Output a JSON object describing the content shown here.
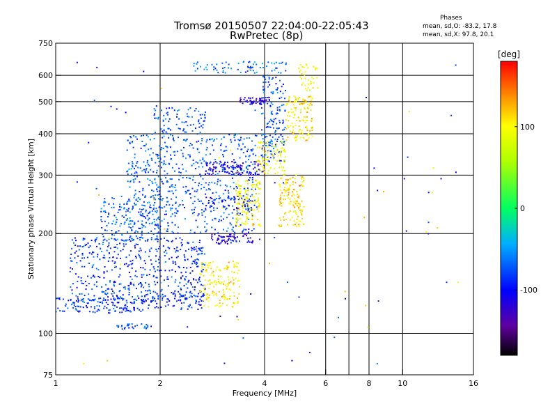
{
  "chart_data": {
    "type": "scatter",
    "title": "Tromsø 20150507 22:04:00-22:05:43",
    "subtitle": "RwPretec (8p)",
    "xlabel": "Frequency [MHz]",
    "ylabel": "Stationary phase Virtual Height [km]",
    "x_scale": "log",
    "y_scale": "log",
    "xlim": [
      1,
      16
    ],
    "ylim": [
      75,
      750
    ],
    "x_ticks": [
      1,
      2,
      4,
      6,
      8,
      10,
      16
    ],
    "y_ticks": [
      75,
      100,
      200,
      300,
      400,
      500,
      600,
      750
    ],
    "x_gridlines": [
      2,
      4,
      6,
      7,
      8,
      10
    ],
    "y_gridlines": [
      100,
      200,
      300,
      400,
      500,
      600
    ],
    "grid": true,
    "legend": {
      "title": "Phases",
      "o_stats": "mean, sd,O: -83.2, 17.8",
      "x_stats": "mean, sd,X:  97.8, 20.1",
      "placement": "top-right"
    },
    "colorbar": {
      "label": "[deg]",
      "range": [
        -180,
        180
      ],
      "ticks": [
        100,
        0,
        -100
      ],
      "tick_labels": [
        "100",
        "0",
        "-100"
      ]
    },
    "clusters": [
      {
        "trace": "o",
        "f": [
          1.0,
          1.8
        ],
        "h": [
          115,
          128
        ],
        "phase": -85,
        "n": 140
      },
      {
        "trace": "o",
        "f": [
          1.8,
          2.7
        ],
        "h": [
          118,
          132
        ],
        "phase": -90,
        "n": 60
      },
      {
        "trace": "o",
        "f": [
          1.1,
          2.7
        ],
        "h": [
          125,
          195
        ],
        "phase": -85,
        "n": 520
      },
      {
        "trace": "o",
        "f": [
          1.35,
          2.0
        ],
        "h": [
          190,
          260
        ],
        "phase": -70,
        "n": 150
      },
      {
        "trace": "o",
        "f": [
          1.6,
          3.8
        ],
        "h": [
          200,
          400
        ],
        "phase": -72,
        "n": 650
      },
      {
        "trace": "o",
        "f": [
          1.9,
          2.7
        ],
        "h": [
          400,
          480
        ],
        "phase": -75,
        "n": 80
      },
      {
        "trace": "o",
        "f": [
          2.7,
          4.0
        ],
        "h": [
          300,
          330
        ],
        "phase": -110,
        "n": 110
      },
      {
        "trace": "o",
        "f": [
          2.8,
          3.7
        ],
        "h": [
          186,
          200
        ],
        "phase": -115,
        "n": 70
      },
      {
        "trace": "o",
        "f": [
          2.7,
          3.7
        ],
        "h": [
          235,
          260
        ],
        "phase": -100,
        "n": 60
      },
      {
        "trace": "o",
        "f": [
          3.4,
          4.2
        ],
        "h": [
          490,
          515
        ],
        "phase": -120,
        "n": 50
      },
      {
        "trace": "o",
        "f": [
          3.9,
          4.6
        ],
        "h": [
          330,
          600
        ],
        "phase": -75,
        "n": 160
      },
      {
        "trace": "o",
        "f": [
          2.5,
          4.7
        ],
        "h": [
          610,
          660
        ],
        "phase": -65,
        "n": 70
      },
      {
        "trace": "o",
        "f": [
          1.5,
          1.9
        ],
        "h": [
          103,
          107
        ],
        "phase": -70,
        "n": 30
      },
      {
        "trace": "x",
        "f": [
          2.6,
          3.4
        ],
        "h": [
          120,
          165
        ],
        "phase": 105,
        "n": 150
      },
      {
        "trace": "x",
        "f": [
          3.3,
          3.9
        ],
        "h": [
          210,
          290
        ],
        "phase": 100,
        "n": 140
      },
      {
        "trace": "x",
        "f": [
          3.8,
          4.6
        ],
        "h": [
          300,
          380
        ],
        "phase": 95,
        "n": 90
      },
      {
        "trace": "x",
        "f": [
          4.4,
          5.2
        ],
        "h": [
          210,
          300
        ],
        "phase": 112,
        "n": 140
      },
      {
        "trace": "x",
        "f": [
          4.6,
          5.5
        ],
        "h": [
          380,
          520
        ],
        "phase": 110,
        "n": 130
      },
      {
        "trace": "x",
        "f": [
          5.0,
          5.7
        ],
        "h": [
          540,
          650
        ],
        "phase": 98,
        "n": 40
      }
    ]
  }
}
